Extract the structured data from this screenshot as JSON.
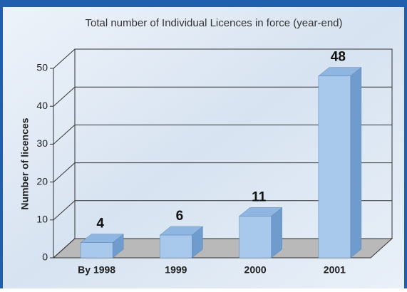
{
  "chart_data": {
    "type": "bar3d",
    "title": "Total number of Individual Licences in force (year-end)",
    "y_label": "Number of licences",
    "categories": [
      "By 1998",
      "1999",
      "2000",
      "2001"
    ],
    "values": [
      4,
      6,
      11,
      48
    ],
    "color": "#a9c9ec",
    "ylim": [
      0,
      50
    ],
    "yticks": [
      0,
      10,
      20,
      30,
      40,
      50
    ],
    "grid": true
  }
}
